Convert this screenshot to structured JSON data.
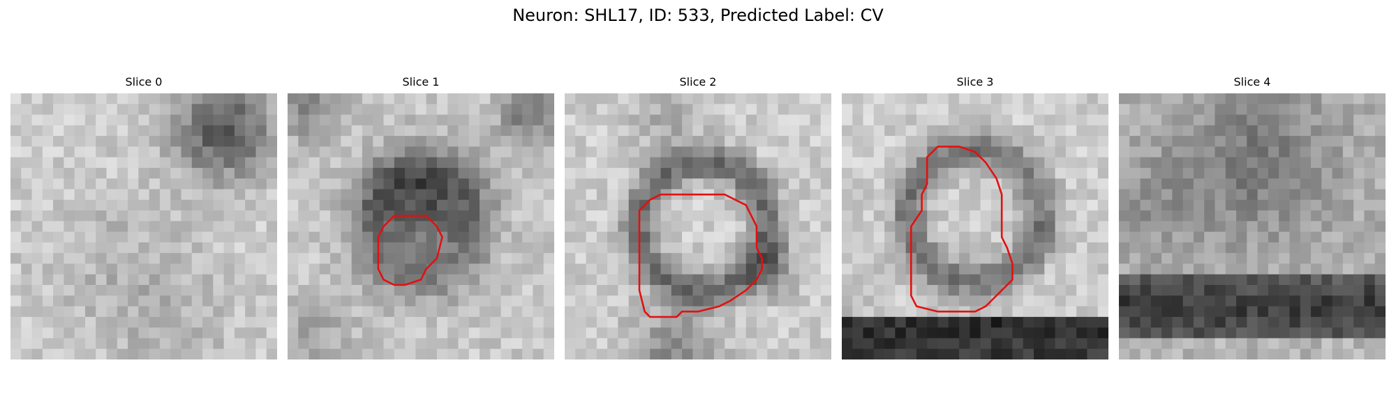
{
  "figure": {
    "title": "Neuron: SHL17, ID: 533, Predicted Label: CV"
  },
  "colors": {
    "contour": "#e31010",
    "background": "#ffffff",
    "colormap": "grayscale"
  },
  "panels": [
    {
      "title": "Slice 0",
      "has_contour": false
    },
    {
      "title": "Slice 1",
      "has_contour": true
    },
    {
      "title": "Slice 2",
      "has_contour": true
    },
    {
      "title": "Slice 3",
      "has_contour": true
    },
    {
      "title": "Slice 4",
      "has_contour": false
    }
  ]
}
